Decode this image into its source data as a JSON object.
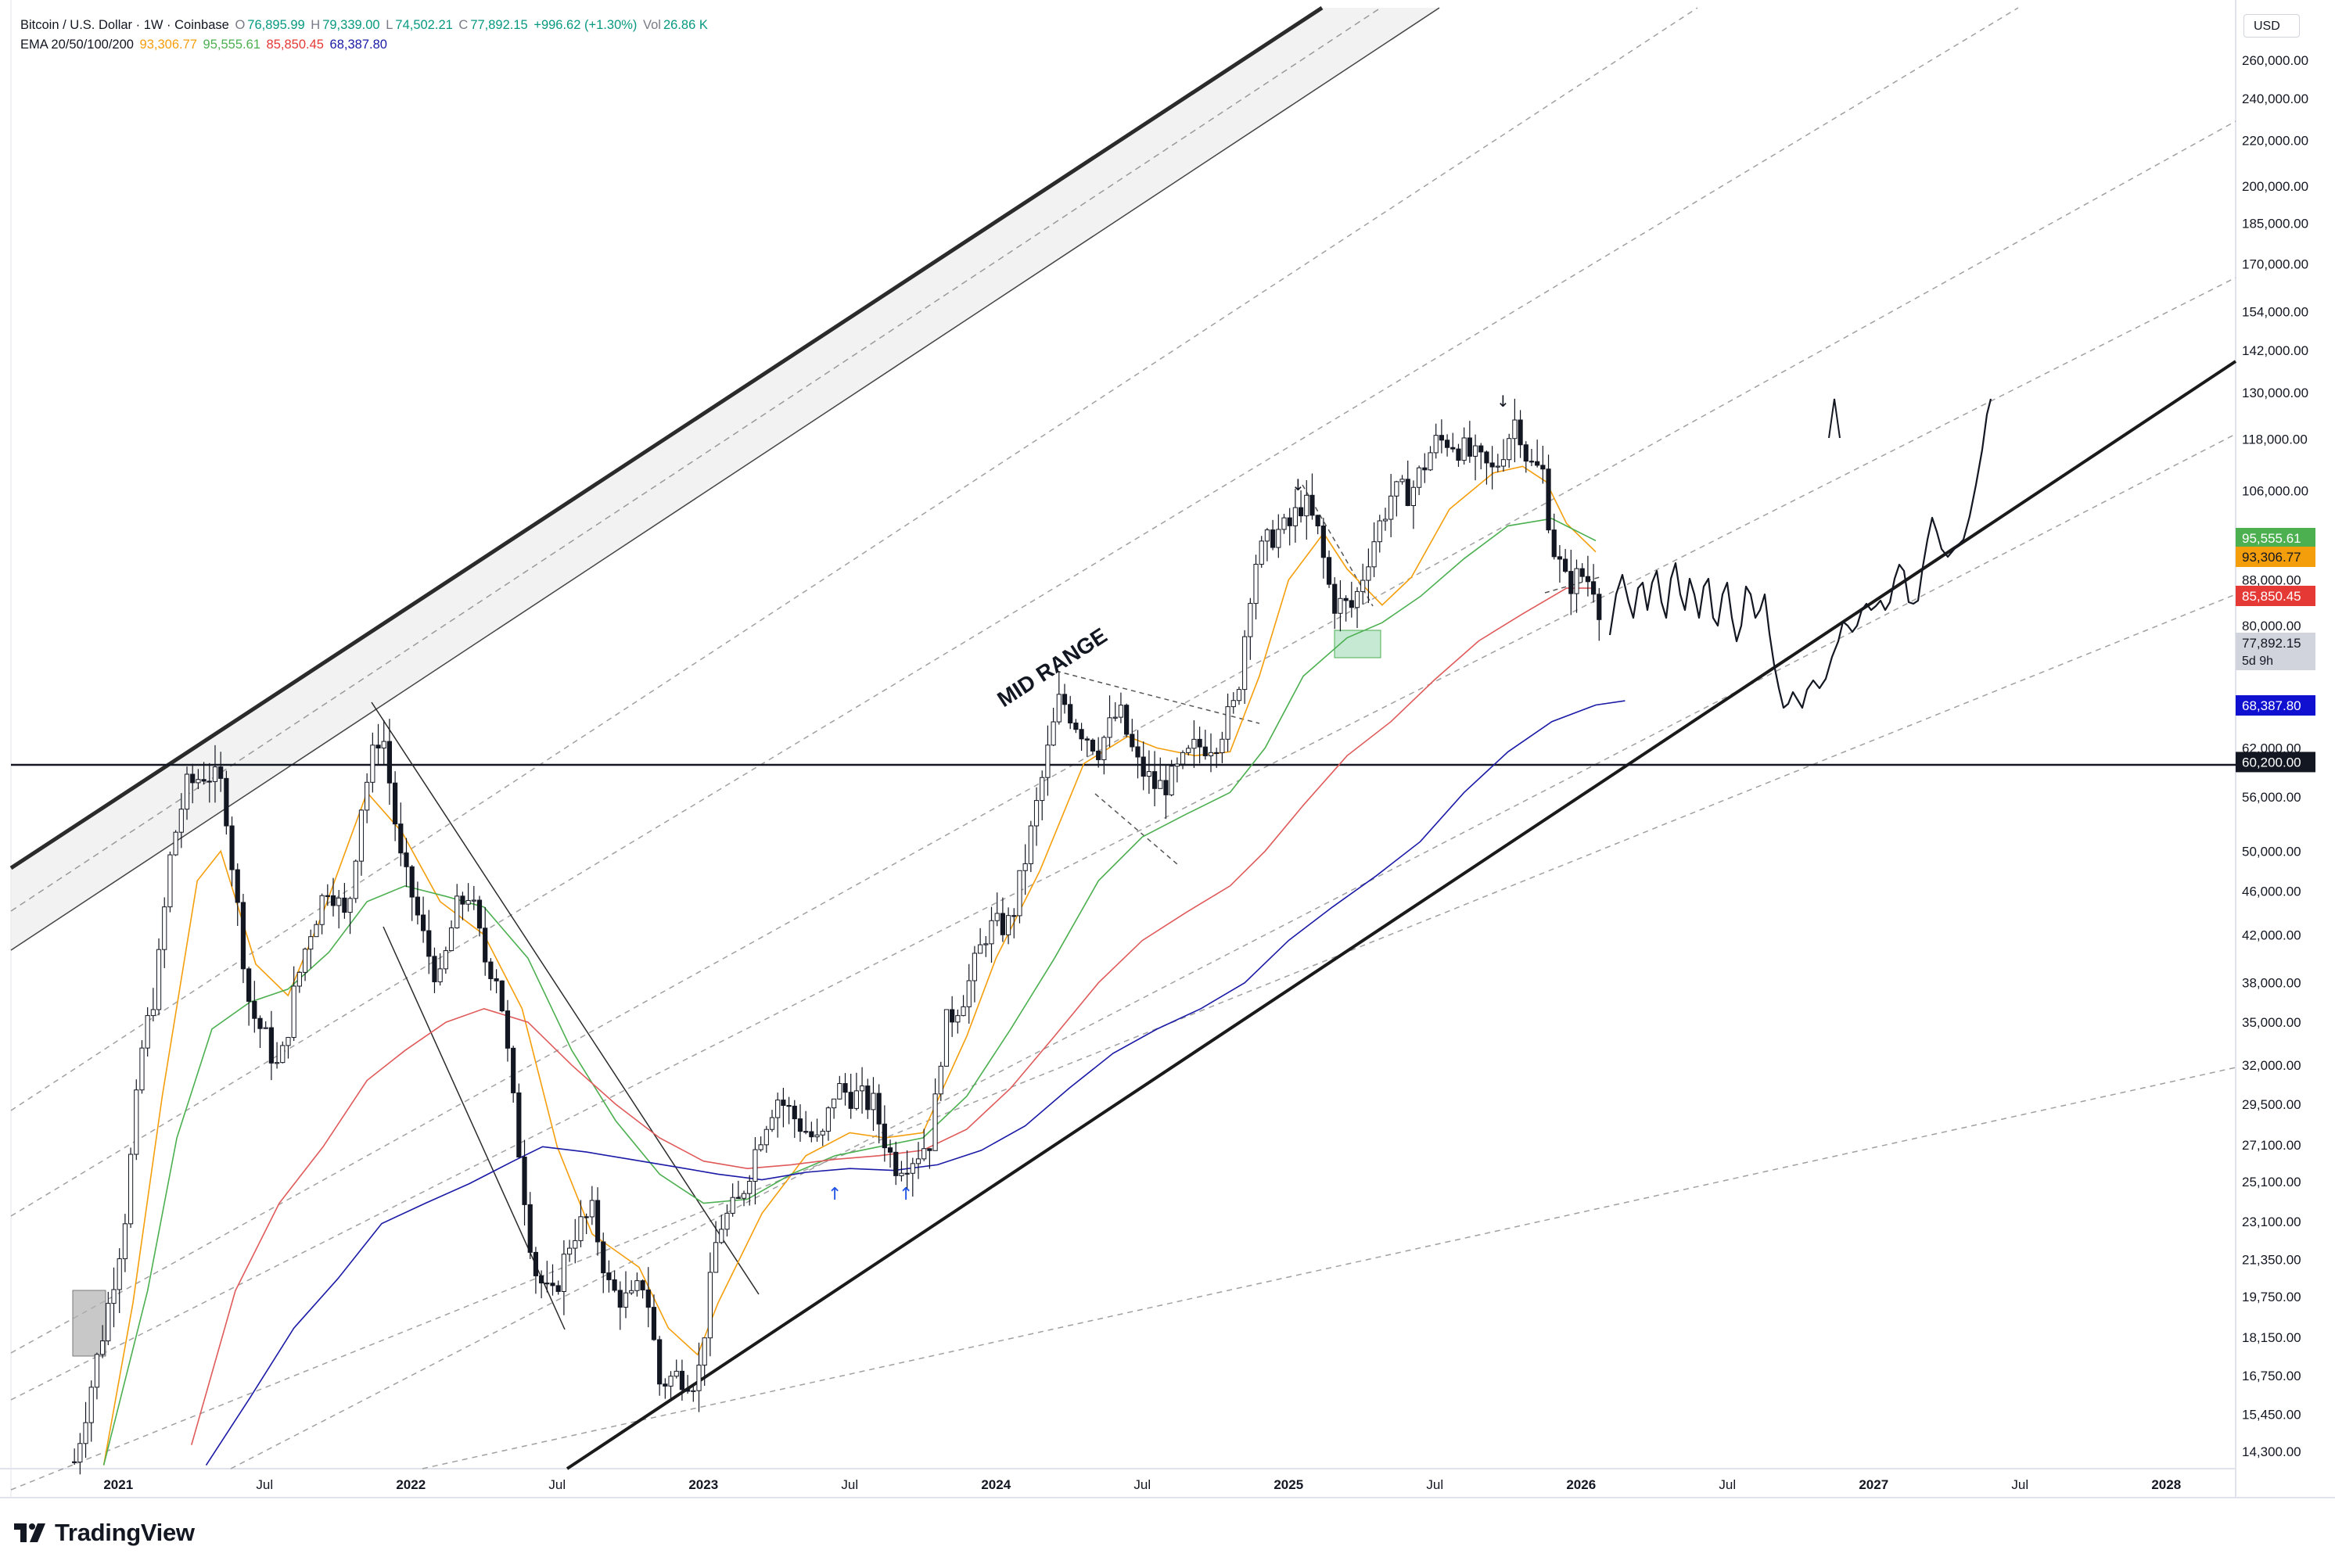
{
  "header": {
    "symbol": "Bitcoin / U.S. Dollar · 1W · Coinbase",
    "o_label": "O",
    "o_value": "76,895.99",
    "h_label": "H",
    "h_value": "79,339.00",
    "l_label": "L",
    "l_value": "74,502.21",
    "c_label": "C",
    "c_value": "77,892.15",
    "change": "+996.62 (+1.30%)",
    "vol_label": "Vol",
    "vol_value": "26.86 K",
    "ema_label": "EMA 20/50/100/200",
    "ema20": "93,306.77",
    "ema50": "95,555.61",
    "ema100": "85,850.45",
    "ema200": "68,387.80"
  },
  "currency_button": "USD",
  "brand": "TradingView",
  "annotations": {
    "mid_range": "MID RANGE"
  },
  "countdown": "5d 9h",
  "colors": {
    "ema20": "#f59e0b",
    "ema50": "#4caf50",
    "ema100": "#e05a5a",
    "ema200": "#1a1aa6",
    "candle": "#131722",
    "green_box": "#b7e4c7",
    "grey_box": "#b0b0b0",
    "arrow": "#1e53e5"
  },
  "chart_data": {
    "type": "line",
    "scale": "log",
    "ylim": [
      13800,
      290000
    ],
    "y_ticks": [
      "260,000.00",
      "240,000.00",
      "220,000.00",
      "200,000.00",
      "185,000.00",
      "170,000.00",
      "154,000.00",
      "142,000.00",
      "130,000.00",
      "118,000.00",
      "106,000.00",
      "88,000.00",
      "80,000.00",
      "62,000.00",
      "56,000.00",
      "50,000.00",
      "46,000.00",
      "42,000.00",
      "38,000.00",
      "35,000.00",
      "32,000.00",
      "29,500.00",
      "27,100.00",
      "25,100.00",
      "23,100.00",
      "21,350.00",
      "19,750.00",
      "18,150.00",
      "16,750.00",
      "15,450.00",
      "14,300.00"
    ],
    "x_ticks": [
      "2021",
      "Jul",
      "2022",
      "Jul",
      "2023",
      "Jul",
      "2024",
      "Jul",
      "2025",
      "Jul",
      "2026",
      "Jul",
      "2027",
      "Jul",
      "2028"
    ],
    "horizontal_line": {
      "value": 60200,
      "label": "60,200.00"
    },
    "price_tags": [
      {
        "name": "EMA 50",
        "label": "95,555.61",
        "value": 95555.61,
        "color": "#4caf50"
      },
      {
        "name": "EMA 20",
        "label": "93,306.77",
        "value": 93306.77,
        "color": "#f59e0b"
      },
      {
        "name": "EMA 100",
        "label": "85,850.45",
        "value": 85850.45,
        "color": "#e53935"
      },
      {
        "name": "last",
        "label": "77,892.15",
        "value": 77892.15,
        "color": "#d1d4dc"
      },
      {
        "name": "EMA 200",
        "label": "68,387.80",
        "value": 68387.8,
        "color": "#1010d0"
      }
    ],
    "series": [
      {
        "name": "EMA 20",
        "color": "#f59e0b",
        "points": [
          [
            2020.95,
            13900
          ],
          [
            2021.05,
            19500
          ],
          [
            2021.15,
            30000
          ],
          [
            2021.27,
            47000
          ],
          [
            2021.35,
            50000
          ],
          [
            2021.47,
            39500
          ],
          [
            2021.58,
            37000
          ],
          [
            2021.7,
            44000
          ],
          [
            2021.85,
            56500
          ],
          [
            2021.97,
            52000
          ],
          [
            2022.1,
            45000
          ],
          [
            2022.25,
            42000
          ],
          [
            2022.38,
            36000
          ],
          [
            2022.5,
            27000
          ],
          [
            2022.62,
            22500
          ],
          [
            2022.78,
            21000
          ],
          [
            2022.88,
            18500
          ],
          [
            2022.98,
            17500
          ],
          [
            2023.05,
            19500
          ],
          [
            2023.2,
            23500
          ],
          [
            2023.35,
            26500
          ],
          [
            2023.5,
            27800
          ],
          [
            2023.62,
            27500
          ],
          [
            2023.75,
            27800
          ],
          [
            2023.9,
            34000
          ],
          [
            2024.0,
            40000
          ],
          [
            2024.15,
            48000
          ],
          [
            2024.3,
            60000
          ],
          [
            2024.45,
            63500
          ],
          [
            2024.55,
            62000
          ],
          [
            2024.68,
            61000
          ],
          [
            2024.8,
            61500
          ],
          [
            2024.9,
            72000
          ],
          [
            2025.0,
            88000
          ],
          [
            2025.12,
            97000
          ],
          [
            2025.2,
            90000
          ],
          [
            2025.32,
            83500
          ],
          [
            2025.42,
            88500
          ],
          [
            2025.55,
            102000
          ],
          [
            2025.7,
            110000
          ],
          [
            2025.8,
            111500
          ],
          [
            2025.88,
            108000
          ],
          [
            2025.95,
            99000
          ],
          [
            2026.05,
            93300
          ]
        ]
      },
      {
        "name": "EMA 50",
        "color": "#4caf50",
        "points": [
          [
            2020.95,
            13900
          ],
          [
            2021.1,
            20000
          ],
          [
            2021.2,
            27500
          ],
          [
            2021.32,
            34500
          ],
          [
            2021.45,
            36500
          ],
          [
            2021.58,
            37500
          ],
          [
            2021.72,
            40500
          ],
          [
            2021.85,
            45000
          ],
          [
            2021.98,
            46500
          ],
          [
            2022.12,
            45500
          ],
          [
            2022.25,
            44500
          ],
          [
            2022.4,
            40000
          ],
          [
            2022.55,
            33000
          ],
          [
            2022.7,
            28500
          ],
          [
            2022.85,
            25500
          ],
          [
            2023.0,
            24000
          ],
          [
            2023.15,
            24200
          ],
          [
            2023.3,
            25500
          ],
          [
            2023.45,
            26500
          ],
          [
            2023.6,
            27000
          ],
          [
            2023.75,
            27500
          ],
          [
            2023.9,
            30000
          ],
          [
            2024.05,
            34500
          ],
          [
            2024.2,
            40000
          ],
          [
            2024.35,
            47000
          ],
          [
            2024.5,
            51500
          ],
          [
            2024.65,
            54000
          ],
          [
            2024.8,
            56500
          ],
          [
            2024.92,
            62000
          ],
          [
            2025.05,
            72000
          ],
          [
            2025.2,
            78000
          ],
          [
            2025.32,
            80500
          ],
          [
            2025.45,
            85000
          ],
          [
            2025.6,
            92000
          ],
          [
            2025.75,
            98500
          ],
          [
            2025.9,
            100000
          ],
          [
            2026.05,
            95500
          ]
        ]
      },
      {
        "name": "EMA 100",
        "color": "#e05a5a",
        "points": [
          [
            2021.25,
            14500
          ],
          [
            2021.4,
            20000
          ],
          [
            2021.55,
            24000
          ],
          [
            2021.7,
            27000
          ],
          [
            2021.85,
            31000
          ],
          [
            2021.98,
            33000
          ],
          [
            2022.12,
            35000
          ],
          [
            2022.25,
            36000
          ],
          [
            2022.4,
            35000
          ],
          [
            2022.55,
            32000
          ],
          [
            2022.7,
            29500
          ],
          [
            2022.85,
            27500
          ],
          [
            2023.0,
            26200
          ],
          [
            2023.15,
            25800
          ],
          [
            2023.3,
            26000
          ],
          [
            2023.45,
            26300
          ],
          [
            2023.6,
            26500
          ],
          [
            2023.75,
            26800
          ],
          [
            2023.9,
            28000
          ],
          [
            2024.05,
            30500
          ],
          [
            2024.2,
            34000
          ],
          [
            2024.35,
            38000
          ],
          [
            2024.5,
            41500
          ],
          [
            2024.65,
            44000
          ],
          [
            2024.8,
            46500
          ],
          [
            2024.92,
            50000
          ],
          [
            2025.05,
            55000
          ],
          [
            2025.2,
            61000
          ],
          [
            2025.35,
            65500
          ],
          [
            2025.5,
            71500
          ],
          [
            2025.65,
            77500
          ],
          [
            2025.8,
            82000
          ],
          [
            2025.95,
            86500
          ],
          [
            2026.05,
            86500
          ]
        ]
      },
      {
        "name": "EMA 200",
        "color": "#1a1aa6",
        "points": [
          [
            2021.3,
            13900
          ],
          [
            2021.45,
            16000
          ],
          [
            2021.6,
            18500
          ],
          [
            2021.75,
            20500
          ],
          [
            2021.9,
            23000
          ],
          [
            2022.05,
            24000
          ],
          [
            2022.2,
            25000
          ],
          [
            2022.35,
            26200
          ],
          [
            2022.45,
            27000
          ],
          [
            2022.6,
            26700
          ],
          [
            2022.75,
            26300
          ],
          [
            2022.9,
            25900
          ],
          [
            2023.05,
            25500
          ],
          [
            2023.2,
            25200
          ],
          [
            2023.35,
            25600
          ],
          [
            2023.5,
            25800
          ],
          [
            2023.65,
            25700
          ],
          [
            2023.8,
            26000
          ],
          [
            2023.95,
            26800
          ],
          [
            2024.1,
            28200
          ],
          [
            2024.25,
            30500
          ],
          [
            2024.4,
            32800
          ],
          [
            2024.55,
            34500
          ],
          [
            2024.7,
            36000
          ],
          [
            2024.85,
            38000
          ],
          [
            2025.0,
            41500
          ],
          [
            2025.15,
            44500
          ],
          [
            2025.3,
            47500
          ],
          [
            2025.45,
            51000
          ],
          [
            2025.6,
            56500
          ],
          [
            2025.75,
            61500
          ],
          [
            2025.9,
            65500
          ],
          [
            2026.05,
            67800
          ],
          [
            2026.15,
            68400
          ]
        ]
      },
      {
        "name": "Price",
        "color": "#131722",
        "points": [
          [
            2020.85,
            14000
          ],
          [
            2020.95,
            18500
          ],
          [
            2021.02,
            23000
          ],
          [
            2021.08,
            33000
          ],
          [
            2021.13,
            38000
          ],
          [
            2021.18,
            50000
          ],
          [
            2021.23,
            57000
          ],
          [
            2021.3,
            59000
          ],
          [
            2021.36,
            57000
          ],
          [
            2021.4,
            46000
          ],
          [
            2021.45,
            36000
          ],
          [
            2021.5,
            34000
          ],
          [
            2021.55,
            31500
          ],
          [
            2021.6,
            37000
          ],
          [
            2021.65,
            42000
          ],
          [
            2021.72,
            47000
          ],
          [
            2021.78,
            43000
          ],
          [
            2021.83,
            55000
          ],
          [
            2021.87,
            61000
          ],
          [
            2021.9,
            65000
          ],
          [
            2021.93,
            57000
          ],
          [
            2021.97,
            48000
          ],
          [
            2022.0,
            46000
          ],
          [
            2022.05,
            41000
          ],
          [
            2022.1,
            38000
          ],
          [
            2022.15,
            44000
          ],
          [
            2022.2,
            46000
          ],
          [
            2022.25,
            40000
          ],
          [
            2022.3,
            38500
          ],
          [
            2022.35,
            29500
          ],
          [
            2022.42,
            21000
          ],
          [
            2022.48,
            19500
          ],
          [
            2022.55,
            22500
          ],
          [
            2022.62,
            23500
          ],
          [
            2022.68,
            20000
          ],
          [
            2022.75,
            19500
          ],
          [
            2022.8,
            20500
          ],
          [
            2022.85,
            16500
          ],
          [
            2022.92,
            16800
          ],
          [
            2022.98,
            16600
          ],
          [
            2023.05,
            22800
          ],
          [
            2023.12,
            24000
          ],
          [
            2023.2,
            28000
          ],
          [
            2023.25,
            30000
          ],
          [
            2023.32,
            28500
          ],
          [
            2023.4,
            27000
          ],
          [
            2023.45,
            30500
          ],
          [
            2023.52,
            30000
          ],
          [
            2023.58,
            29500
          ],
          [
            2023.65,
            26000
          ],
          [
            2023.72,
            26500
          ],
          [
            2023.78,
            27500
          ],
          [
            2023.82,
            34500
          ],
          [
            2023.9,
            37500
          ],
          [
            2023.97,
            42500
          ],
          [
            2024.05,
            43000
          ],
          [
            2024.12,
            52000
          ],
          [
            2024.18,
            62000
          ],
          [
            2024.22,
            69000
          ],
          [
            2024.28,
            65000
          ],
          [
            2024.35,
            62000
          ],
          [
            2024.42,
            67000
          ],
          [
            2024.48,
            60000
          ],
          [
            2024.55,
            57000
          ],
          [
            2024.6,
            58000
          ],
          [
            2024.68,
            62000
          ],
          [
            2024.75,
            63000
          ],
          [
            2024.82,
            68000
          ],
          [
            2024.88,
            91000
          ],
          [
            2024.95,
            97000
          ],
          [
            2025.0,
            98000
          ],
          [
            2025.05,
            104000
          ],
          [
            2025.1,
            97000
          ],
          [
            2025.15,
            84000
          ],
          [
            2025.22,
            83000
          ],
          [
            2025.28,
            94000
          ],
          [
            2025.35,
            105000
          ],
          [
            2025.42,
            106000
          ],
          [
            2025.5,
            117000
          ],
          [
            2025.55,
            118000
          ],
          [
            2025.62,
            114000
          ],
          [
            2025.7,
            110000
          ],
          [
            2025.78,
            124000
          ],
          [
            2025.82,
            112000
          ],
          [
            2025.87,
            110000
          ],
          [
            2025.9,
            95000
          ],
          [
            2025.95,
            87000
          ],
          [
            2026.0,
            89000
          ],
          [
            2026.05,
            87000
          ],
          [
            2026.08,
            78000
          ]
        ]
      }
    ]
  }
}
